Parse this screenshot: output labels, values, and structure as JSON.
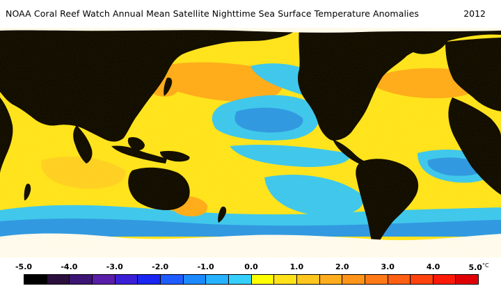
{
  "title": "NOAA Coral Reef Watch Annual Mean Satellite Nighttime Sea Surface Temperature Anomalies",
  "year": "2012",
  "legend": {
    "unit": "°C",
    "ticks": [
      "-5.0",
      "-4.0",
      "-3.0",
      "-2.0",
      "-1.0",
      "0.0",
      "1.0",
      "2.0",
      "3.0",
      "4.0",
      "5.0"
    ],
    "colors": [
      "#000000",
      "#2a0f3d",
      "#3c1574",
      "#5a1ea8",
      "#3b1fd6",
      "#1a25f2",
      "#1f5cff",
      "#1c8aff",
      "#26b2ff",
      "#35d0ff",
      "#ffff00",
      "#ffe21a",
      "#ffc61f",
      "#ffad1c",
      "#ff941a",
      "#ff7a16",
      "#ff5f12",
      "#ff420e",
      "#ff1a08",
      "#e00004"
    ]
  },
  "map_colors": {
    "ocean_warm": "#ffe620",
    "ocean_mild": "#ffd227",
    "ocean_hot": "#ffab1e",
    "ocean_cool": "#30c8ff",
    "ocean_cold": "#2096f4",
    "land": "#000000",
    "ice": "#ffffff"
  }
}
